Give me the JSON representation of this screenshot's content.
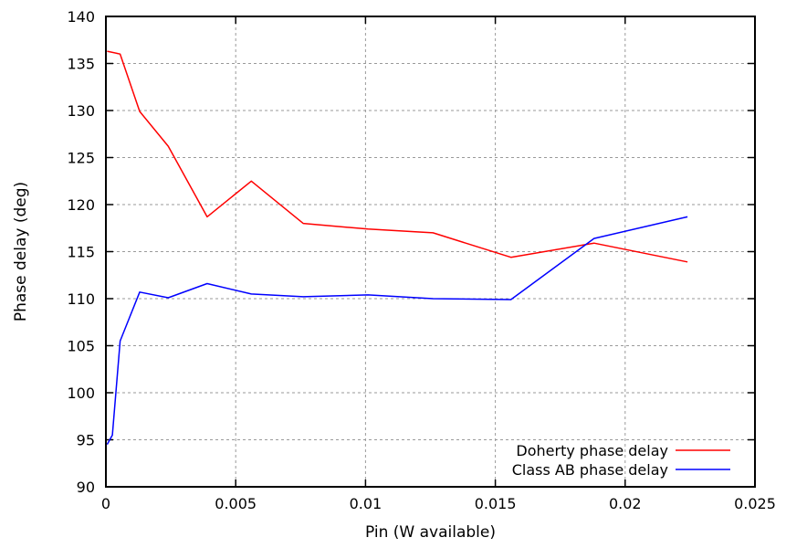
{
  "chart_data": {
    "type": "line",
    "xlabel": "Pin (W available)",
    "ylabel": "Phase delay (deg)",
    "xlim": [
      0,
      0.025
    ],
    "ylim": [
      90,
      140
    ],
    "xticks": [
      0,
      0.005,
      0.01,
      0.015,
      0.02,
      0.025
    ],
    "xtick_labels": [
      "0",
      "0.005",
      "0.01",
      "0.015",
      "0.02",
      "0.025"
    ],
    "yticks": [
      90,
      95,
      100,
      105,
      110,
      115,
      120,
      125,
      130,
      135,
      140
    ],
    "ytick_labels": [
      "90",
      "95",
      "100",
      "105",
      "110",
      "115",
      "120",
      "125",
      "130",
      "135",
      "140"
    ],
    "grid": true,
    "legend_position": "bottom-right",
    "series": [
      {
        "name": "Doherty phase delay",
        "color": "#ff0000",
        "x": [
          5e-05,
          0.00055,
          0.0013,
          0.0024,
          0.0039,
          0.0056,
          0.0076,
          0.0101,
          0.0126,
          0.0156,
          0.0188,
          0.0224
        ],
        "y": [
          136.3,
          136.0,
          129.9,
          126.2,
          118.7,
          122.5,
          118.0,
          117.4,
          117.0,
          114.4,
          115.9,
          113.9
        ]
      },
      {
        "name": "Class AB phase delay",
        "color": "#0000ff",
        "x": [
          5e-05,
          0.00025,
          0.00055,
          0.0013,
          0.0024,
          0.0039,
          0.0056,
          0.0076,
          0.0101,
          0.0126,
          0.0156,
          0.0188,
          0.0224
        ],
        "y": [
          94.5,
          95.5,
          105.5,
          110.7,
          110.1,
          111.6,
          110.5,
          110.2,
          110.4,
          110.0,
          109.9,
          116.4,
          118.7
        ]
      }
    ]
  }
}
